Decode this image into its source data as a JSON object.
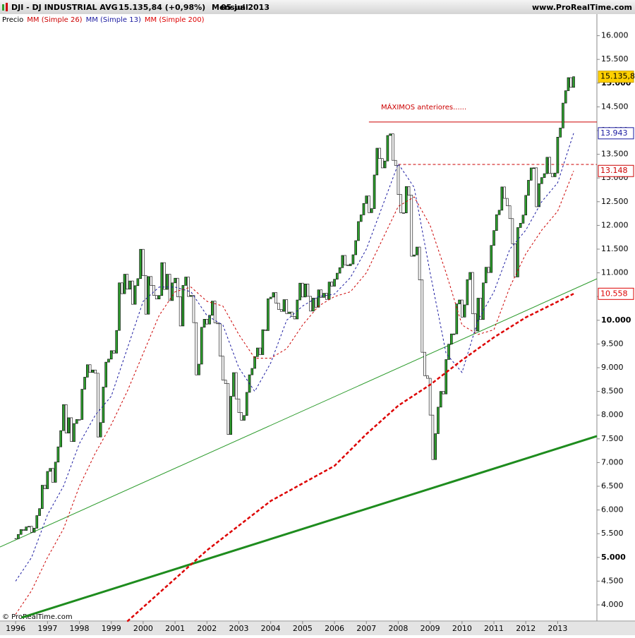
{
  "chart_data": {
    "type": "candlestick",
    "title": "DJI - DJ INDUSTRIAL AVG",
    "price_text": "15.135,84 (+0,98%)",
    "period": "Mensual",
    "date": "05 jul 2013",
    "source": "www.ProRealTime.com",
    "copyright": "© ProRealTime.com",
    "annotation": "MÁXIMOS anteriores......",
    "up_color": "#2e9e2e",
    "down_color": "#ffffff",
    "xlim": [
      1995.51,
      2014.23
    ],
    "ylim": [
      3658,
      16455
    ],
    "yticks": [
      {
        "value": 4000,
        "label": "4.000"
      },
      {
        "value": 4500,
        "label": "4.500"
      },
      {
        "value": 5000,
        "label": "5.000"
      },
      {
        "value": 5500,
        "label": "5.500"
      },
      {
        "value": 6000,
        "label": "6.000"
      },
      {
        "value": 6500,
        "label": "6.500"
      },
      {
        "value": 7000,
        "label": "7.000"
      },
      {
        "value": 7500,
        "label": "7.500"
      },
      {
        "value": 8000,
        "label": "8.000"
      },
      {
        "value": 8500,
        "label": "8.500"
      },
      {
        "value": 9000,
        "label": "9.000"
      },
      {
        "value": 9500,
        "label": "9.500"
      },
      {
        "value": 10000,
        "label": "10.000"
      },
      {
        "value": 10500,
        "label": "10.500"
      },
      {
        "value": 11000,
        "label": "11.000"
      },
      {
        "value": 11500,
        "label": "11.500"
      },
      {
        "value": 12000,
        "label": "12.000"
      },
      {
        "value": 12500,
        "label": "12.500"
      },
      {
        "value": 13000,
        "label": "13.000"
      },
      {
        "value": 13500,
        "label": "13.500"
      },
      {
        "value": 14000,
        "label": "14.000"
      },
      {
        "value": 14500,
        "label": "14.500"
      },
      {
        "value": 15000,
        "label": "15.000"
      },
      {
        "value": 15500,
        "label": "15.500"
      },
      {
        "value": 16000,
        "label": "16.000"
      }
    ],
    "categories": [
      "1996",
      null,
      null,
      null,
      null,
      null,
      null,
      null,
      null,
      null,
      null,
      null,
      "1997",
      null,
      null,
      null,
      null,
      null,
      null,
      null,
      null,
      null,
      null,
      null,
      "1998",
      null,
      null,
      null,
      null,
      null,
      null,
      null,
      null,
      null,
      null,
      null,
      "1999",
      null,
      null,
      null,
      null,
      null,
      null,
      null,
      null,
      null,
      null,
      null,
      "2000",
      null,
      null,
      null,
      null,
      null,
      null,
      null,
      null,
      null,
      null,
      null,
      "2001",
      null,
      null,
      null,
      null,
      null,
      null,
      null,
      null,
      null,
      null,
      null,
      "2002",
      null,
      null,
      null,
      null,
      null,
      null,
      null,
      null,
      null,
      null,
      null,
      "2003",
      null,
      null,
      null,
      null,
      null,
      null,
      null,
      null,
      null,
      null,
      null,
      "2004",
      null,
      null,
      null,
      null,
      null,
      null,
      null,
      null,
      null,
      null,
      null,
      "2005",
      null,
      null,
      null,
      null,
      null,
      null,
      null,
      null,
      null,
      null,
      null,
      "2006",
      null,
      null,
      null,
      null,
      null,
      null,
      null,
      null,
      null,
      null,
      null,
      "2007",
      null,
      null,
      null,
      null,
      null,
      null,
      null,
      null,
      null,
      null,
      null,
      "2008",
      null,
      null,
      null,
      null,
      null,
      null,
      null,
      null,
      null,
      null,
      null,
      "2009",
      null,
      null,
      null,
      null,
      null,
      null,
      null,
      null,
      null,
      null,
      null,
      "2010",
      null,
      null,
      null,
      null,
      null,
      null,
      null,
      null,
      null,
      null,
      null,
      "2011",
      null,
      null,
      null,
      null,
      null,
      null,
      null,
      null,
      null,
      null,
      null,
      "2012",
      null,
      null,
      null,
      null,
      null,
      null,
      null,
      null,
      null,
      null,
      null,
      "2013",
      null,
      null,
      null,
      null,
      null,
      null
    ],
    "series": [
      {
        "name": "Precio",
        "color": "#000000",
        "last_label": "15.135,84",
        "values": [
          5395,
          5485,
          5587,
          5569,
          5643,
          5655,
          5529,
          5616,
          5882,
          6029,
          6522,
          6448,
          6813,
          6877,
          6583,
          7009,
          7331,
          7673,
          8222,
          7622,
          7945,
          7442,
          7823,
          7908,
          7907,
          8546,
          8800,
          9063,
          8900,
          8952,
          8883,
          7539,
          7843,
          8592,
          9117,
          9181,
          9359,
          9307,
          9786,
          10789,
          10560,
          10971,
          10655,
          10829,
          10337,
          10729,
          10878,
          11497,
          10941,
          10128,
          10922,
          10734,
          10522,
          10448,
          10522,
          11215,
          10651,
          10971,
          10415,
          10788,
          10887,
          10495,
          9879,
          10735,
          10912,
          10502,
          10523,
          9950,
          8848,
          9075,
          9852,
          10022,
          9920,
          10106,
          10404,
          9946,
          9925,
          9243,
          8737,
          8664,
          7592,
          8397,
          8896,
          8342,
          8054,
          7891,
          7992,
          8480,
          8850,
          8985,
          9234,
          9416,
          9275,
          9801,
          9782,
          10454,
          10488,
          10584,
          10358,
          10226,
          10188,
          10435,
          10140,
          10174,
          10080,
          10027,
          10428,
          10783,
          10490,
          10766,
          10504,
          10193,
          10467,
          10275,
          10641,
          10482,
          10569,
          10440,
          10806,
          10718,
          10865,
          10993,
          11109,
          11367,
          11168,
          11150,
          11186,
          11381,
          11679,
          12081,
          12222,
          12463,
          12622,
          12268,
          12354,
          13063,
          13628,
          13409,
          13212,
          13358,
          13896,
          13930,
          13372,
          13265,
          12650,
          12266,
          12263,
          12820,
          12638,
          11350,
          11378,
          11544,
          10851,
          9325,
          8829,
          8776,
          8001,
          7063,
          7609,
          8168,
          8500,
          8447,
          9172,
          9496,
          9712,
          9713,
          10345,
          10428,
          10067,
          10325,
          10857,
          11009,
          10137,
          9774,
          10466,
          10015,
          10788,
          11118,
          11006,
          11578,
          11892,
          12226,
          12320,
          12811,
          12570,
          12414,
          12143,
          11614,
          10913,
          11955,
          12046,
          12218,
          12633,
          12952,
          13212,
          13214,
          12393,
          12880,
          13009,
          13091,
          13437,
          13096,
          13026,
          13104,
          13861,
          14054,
          14579,
          14840,
          15116,
          14910,
          15135.84
        ]
      },
      {
        "name": "MM (Simple 26)",
        "color": "#cc0000",
        "last_label": "13.148",
        "x": [
          1996,
          1996.5,
          1997,
          1997.5,
          1998,
          1998.5,
          1999,
          1999.5,
          2000,
          2000.5,
          2001,
          2001.5,
          2002,
          2002.5,
          2003,
          2003.5,
          2004,
          2004.5,
          2005,
          2005.5,
          2006,
          2006.5,
          2007,
          2007.5,
          2008,
          2008.5,
          2009,
          2009.5,
          2010,
          2010.5,
          2011,
          2011.5,
          2012,
          2012.5,
          2013,
          2013.5
        ],
        "values": [
          3800,
          4300,
          5000,
          5600,
          6500,
          7200,
          7800,
          8500,
          9300,
          10100,
          10600,
          10700,
          10400,
          10300,
          9700,
          9200,
          9200,
          9400,
          9900,
          10300,
          10500,
          10600,
          11000,
          11700,
          12400,
          12600,
          12000,
          11000,
          9900,
          9700,
          9800,
          10700,
          11400,
          11900,
          12300,
          13148
        ]
      },
      {
        "name": "MM (Simple 13)",
        "color": "#1a1aa0",
        "last_label": "13.943",
        "x": [
          1996,
          1996.5,
          1997,
          1997.5,
          1998,
          1998.5,
          1999,
          1999.5,
          2000,
          2000.5,
          2001,
          2001.5,
          2002,
          2002.5,
          2003,
          2003.5,
          2004,
          2004.5,
          2005,
          2005.5,
          2006,
          2006.5,
          2007,
          2007.5,
          2008,
          2008.5,
          2009,
          2009.5,
          2010,
          2010.5,
          2011,
          2011.5,
          2012,
          2012.5,
          2013,
          2013.5
        ],
        "values": [
          4500,
          5000,
          5900,
          6500,
          7400,
          8000,
          8400,
          9400,
          10400,
          10700,
          10700,
          10600,
          10100,
          9900,
          9000,
          8500,
          9100,
          10000,
          10300,
          10500,
          10550,
          10900,
          11500,
          12400,
          13300,
          12800,
          11000,
          9300,
          8900,
          10000,
          10600,
          11500,
          11900,
          12500,
          12900,
          13943
        ]
      },
      {
        "name": "MM (Simple 200)",
        "color": "#dd0000",
        "last_label": "10.558",
        "x": [
          1999.5,
          2001,
          2002,
          2003,
          2004,
          2005,
          2006,
          2007,
          2008,
          2009,
          2010,
          2011,
          2012,
          2013.5
        ],
        "values": [
          3650,
          4550,
          5150,
          5670,
          6190,
          6560,
          6930,
          7600,
          8200,
          8640,
          9160,
          9640,
          10060,
          10558
        ]
      }
    ],
    "lines": [
      {
        "color": "#2a9a2a",
        "width": 1,
        "x": [
          1995.51,
          2014.23
        ],
        "values": [
          5220,
          10875
        ]
      },
      {
        "color": "#1e8c1e",
        "width": 3,
        "x": [
          1996.18,
          2014.23
        ],
        "values": [
          3730,
          7557
        ]
      },
      {
        "color": "#cc0000",
        "width": 1,
        "x": [
          2007.08,
          2014.23
        ],
        "values": [
          14180,
          14180
        ]
      },
      {
        "color": "#cc0000",
        "width": 1,
        "dash": true,
        "x": [
          2008.0,
          2014.23
        ],
        "values": [
          13286,
          13286
        ]
      }
    ]
  }
}
